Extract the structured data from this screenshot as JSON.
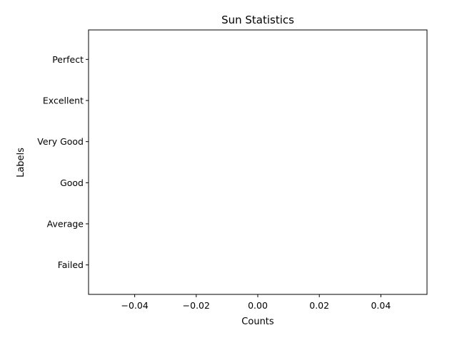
{
  "chart_data": {
    "type": "bar",
    "orientation": "horizontal",
    "title": "Sun Statistics",
    "xlabel": "Counts",
    "ylabel": "Labels",
    "categories": [
      "Failed",
      "Average",
      "Good",
      "Very Good",
      "Excellent",
      "Perfect"
    ],
    "values": [
      0,
      0,
      0,
      0,
      0,
      0
    ],
    "xlim": [
      -0.055,
      0.055
    ],
    "xticks": [
      -0.04,
      -0.02,
      0.0,
      0.02,
      0.04
    ],
    "xtick_labels": [
      "−0.04",
      "−0.02",
      "0.00",
      "0.02",
      "0.04"
    ],
    "grid": false,
    "legend": "none"
  }
}
